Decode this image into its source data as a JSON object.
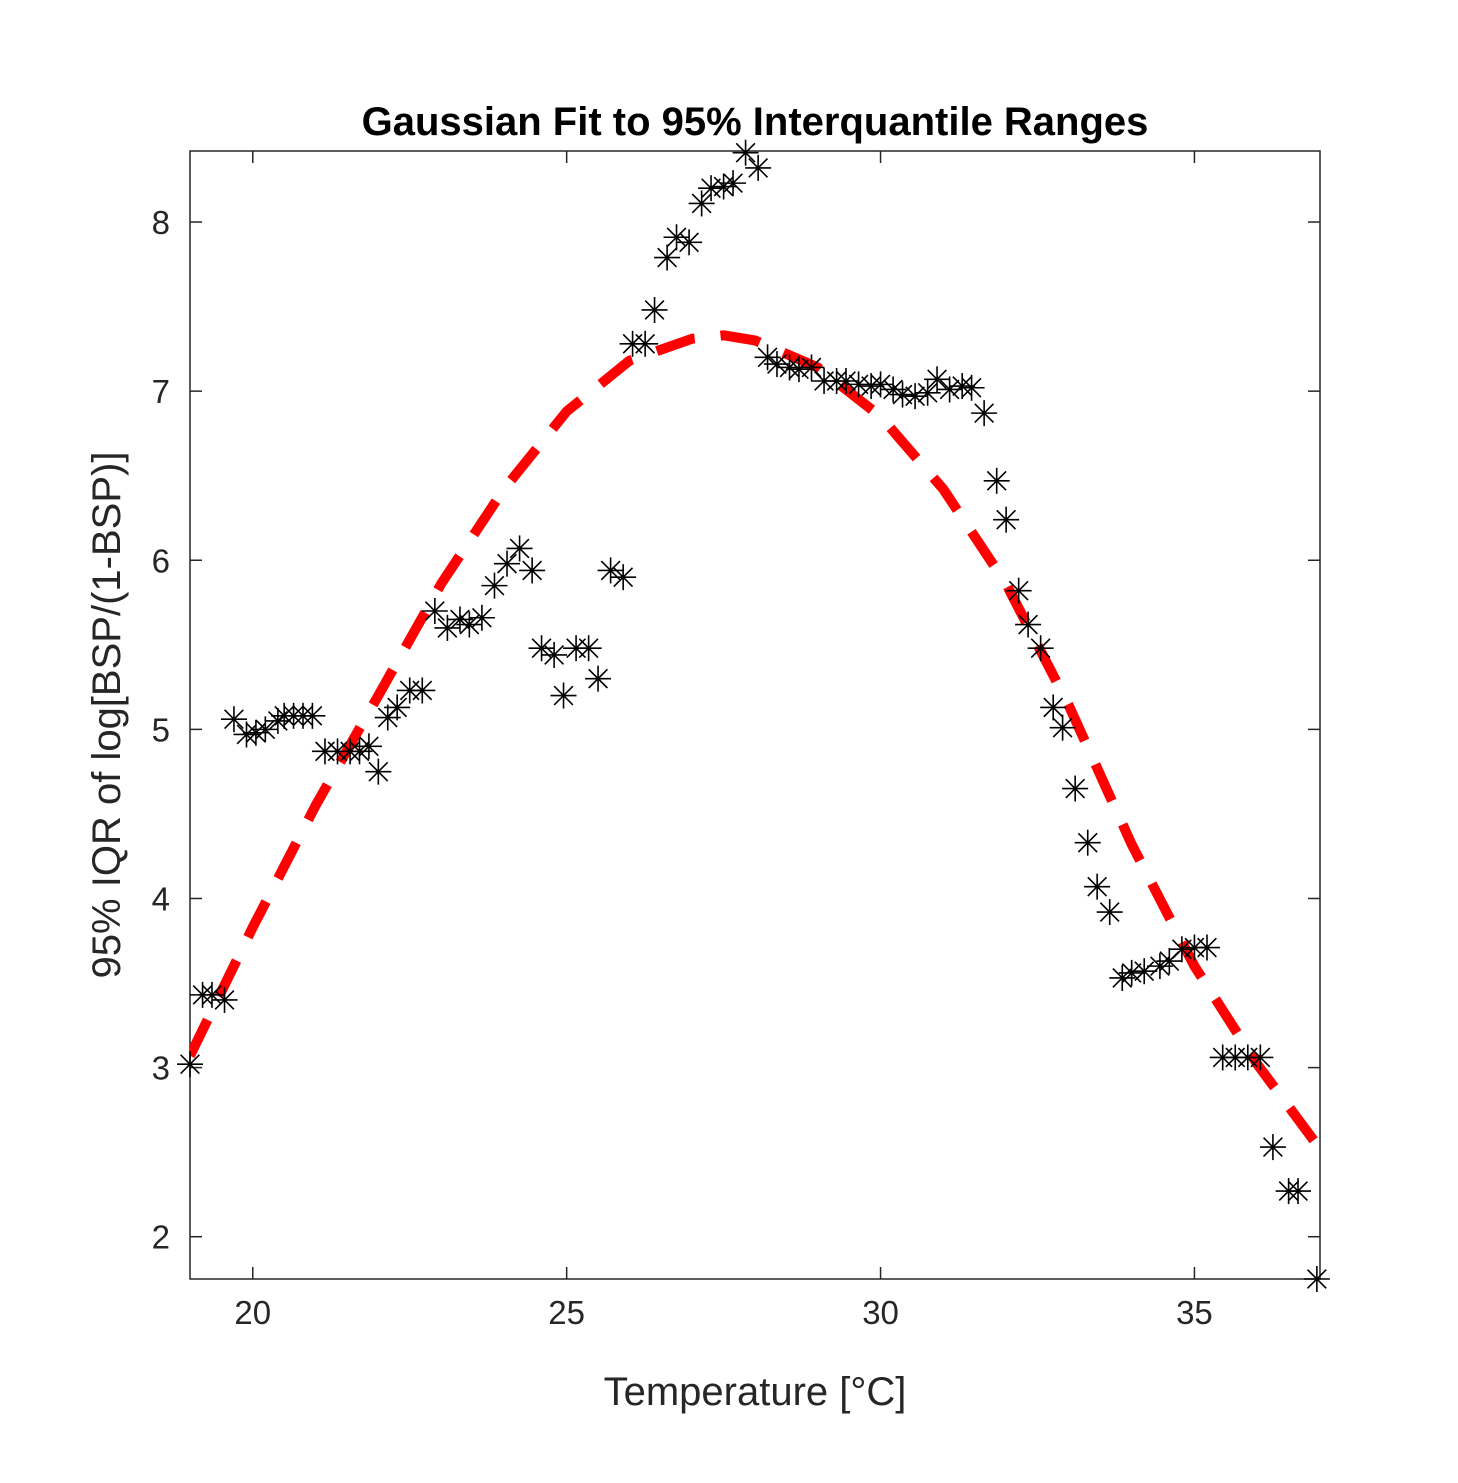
{
  "chart_data": {
    "type": "scatter",
    "title": "Gaussian Fit to 95% Interquantile Ranges",
    "xlabel": "Temperature [°C]",
    "ylabel": "95% IQR of log[BSP/(1-BSP)]",
    "xlim": [
      19,
      37
    ],
    "ylim": [
      1.75,
      8.42
    ],
    "xticks": [
      20,
      25,
      30,
      35
    ],
    "yticks": [
      2,
      3,
      4,
      5,
      6,
      7,
      8
    ],
    "grid": false,
    "series": [
      {
        "marker": "asterisk",
        "color": "#000000",
        "points": [
          [
            19.0,
            3.02
          ],
          [
            19.2,
            3.43
          ],
          [
            19.35,
            3.43
          ],
          [
            19.55,
            3.4
          ],
          [
            19.7,
            5.06
          ],
          [
            19.9,
            4.97
          ],
          [
            20.05,
            4.98
          ],
          [
            20.2,
            5.0
          ],
          [
            20.4,
            5.05
          ],
          [
            20.5,
            5.08
          ],
          [
            20.65,
            5.08
          ],
          [
            20.8,
            5.08
          ],
          [
            20.95,
            5.08
          ],
          [
            21.15,
            4.87
          ],
          [
            21.35,
            4.87
          ],
          [
            21.55,
            4.87
          ],
          [
            21.7,
            4.87
          ],
          [
            21.85,
            4.9
          ],
          [
            22.0,
            4.75
          ],
          [
            22.15,
            5.07
          ],
          [
            22.3,
            5.13
          ],
          [
            22.5,
            5.23
          ],
          [
            22.7,
            5.23
          ],
          [
            22.9,
            5.7
          ],
          [
            23.1,
            5.6
          ],
          [
            23.3,
            5.65
          ],
          [
            23.45,
            5.62
          ],
          [
            23.65,
            5.66
          ],
          [
            23.85,
            5.85
          ],
          [
            24.05,
            5.98
          ],
          [
            24.25,
            6.07
          ],
          [
            24.45,
            5.94
          ],
          [
            24.6,
            5.48
          ],
          [
            24.8,
            5.44
          ],
          [
            24.95,
            5.2
          ],
          [
            25.15,
            5.48
          ],
          [
            25.35,
            5.48
          ],
          [
            25.5,
            5.3
          ],
          [
            25.7,
            5.94
          ],
          [
            25.9,
            5.9
          ],
          [
            26.05,
            7.28
          ],
          [
            26.25,
            7.28
          ],
          [
            26.4,
            7.48
          ],
          [
            26.6,
            7.79
          ],
          [
            26.75,
            7.91
          ],
          [
            26.95,
            7.88
          ],
          [
            27.15,
            8.11
          ],
          [
            27.3,
            8.2
          ],
          [
            27.5,
            8.21
          ],
          [
            27.65,
            8.23
          ],
          [
            27.85,
            8.41
          ],
          [
            28.05,
            8.32
          ],
          [
            28.2,
            7.2
          ],
          [
            28.35,
            7.16
          ],
          [
            28.55,
            7.14
          ],
          [
            28.7,
            7.13
          ],
          [
            28.9,
            7.14
          ],
          [
            29.1,
            7.06
          ],
          [
            29.3,
            7.06
          ],
          [
            29.45,
            7.06
          ],
          [
            29.65,
            7.04
          ],
          [
            29.85,
            7.03
          ],
          [
            30.0,
            7.04
          ],
          [
            30.2,
            7.01
          ],
          [
            30.35,
            6.98
          ],
          [
            30.55,
            6.97
          ],
          [
            30.75,
            6.99
          ],
          [
            30.9,
            7.07
          ],
          [
            31.1,
            7.01
          ],
          [
            31.3,
            7.03
          ],
          [
            31.45,
            7.02
          ],
          [
            31.65,
            6.87
          ],
          [
            31.85,
            6.47
          ],
          [
            32.0,
            6.24
          ],
          [
            32.2,
            5.82
          ],
          [
            32.35,
            5.62
          ],
          [
            32.55,
            5.48
          ],
          [
            32.75,
            5.13
          ],
          [
            32.9,
            5.01
          ],
          [
            33.1,
            4.65
          ],
          [
            33.3,
            4.33
          ],
          [
            33.45,
            4.07
          ],
          [
            33.65,
            3.92
          ],
          [
            33.85,
            3.53
          ],
          [
            34.0,
            3.56
          ],
          [
            34.2,
            3.57
          ],
          [
            34.45,
            3.6
          ],
          [
            34.6,
            3.63
          ],
          [
            34.8,
            3.7
          ],
          [
            35.0,
            3.71
          ],
          [
            35.2,
            3.71
          ],
          [
            35.45,
            3.06
          ],
          [
            35.65,
            3.06
          ],
          [
            35.85,
            3.06
          ],
          [
            36.05,
            3.06
          ],
          [
            36.25,
            2.53
          ],
          [
            36.5,
            2.27
          ],
          [
            36.65,
            2.27
          ],
          [
            36.95,
            1.75
          ]
        ]
      },
      {
        "style": "dashed",
        "color": "#ff0000",
        "fit": "gaussian",
        "points": [
          [
            19.0,
            3.07
          ],
          [
            20.0,
            3.83
          ],
          [
            21.0,
            4.55
          ],
          [
            22.0,
            5.2
          ],
          [
            23.0,
            5.86
          ],
          [
            24.0,
            6.42
          ],
          [
            25.0,
            6.88
          ],
          [
            26.0,
            7.18
          ],
          [
            27.0,
            7.31
          ],
          [
            27.5,
            7.33
          ],
          [
            28.0,
            7.3
          ],
          [
            29.0,
            7.14
          ],
          [
            30.0,
            6.85
          ],
          [
            31.0,
            6.42
          ],
          [
            32.0,
            5.86
          ],
          [
            33.0,
            5.14
          ],
          [
            34.0,
            4.32
          ],
          [
            35.0,
            3.6
          ],
          [
            36.0,
            3.02
          ],
          [
            37.0,
            2.52
          ]
        ]
      }
    ]
  }
}
